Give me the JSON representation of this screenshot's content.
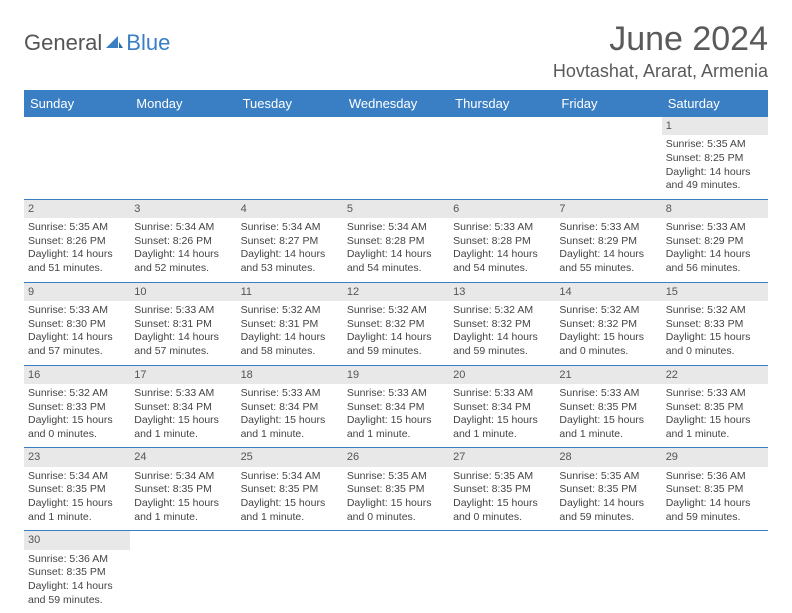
{
  "logo": {
    "general": "General",
    "blue": "Blue"
  },
  "title": "June 2024",
  "location": "Hovtashat, Ararat, Armenia",
  "colors": {
    "header_bg": "#3a7fc4",
    "header_text": "#ffffff",
    "day_num_bg": "#e8e8e8",
    "body_text": "#444444",
    "title_text": "#5a5a5a",
    "row_divider": "#3a7fc4",
    "page_bg": "#ffffff"
  },
  "typography": {
    "title_fontsize": 34,
    "location_fontsize": 18,
    "dayhead_fontsize": 13,
    "cell_fontsize": 10.5
  },
  "day_headers": [
    "Sunday",
    "Monday",
    "Tuesday",
    "Wednesday",
    "Thursday",
    "Friday",
    "Saturday"
  ],
  "weeks": [
    [
      null,
      null,
      null,
      null,
      null,
      null,
      {
        "n": "1",
        "sr": "Sunrise: 5:35 AM",
        "ss": "Sunset: 8:25 PM",
        "dl": "Daylight: 14 hours and 49 minutes."
      }
    ],
    [
      {
        "n": "2",
        "sr": "Sunrise: 5:35 AM",
        "ss": "Sunset: 8:26 PM",
        "dl": "Daylight: 14 hours and 51 minutes."
      },
      {
        "n": "3",
        "sr": "Sunrise: 5:34 AM",
        "ss": "Sunset: 8:26 PM",
        "dl": "Daylight: 14 hours and 52 minutes."
      },
      {
        "n": "4",
        "sr": "Sunrise: 5:34 AM",
        "ss": "Sunset: 8:27 PM",
        "dl": "Daylight: 14 hours and 53 minutes."
      },
      {
        "n": "5",
        "sr": "Sunrise: 5:34 AM",
        "ss": "Sunset: 8:28 PM",
        "dl": "Daylight: 14 hours and 54 minutes."
      },
      {
        "n": "6",
        "sr": "Sunrise: 5:33 AM",
        "ss": "Sunset: 8:28 PM",
        "dl": "Daylight: 14 hours and 54 minutes."
      },
      {
        "n": "7",
        "sr": "Sunrise: 5:33 AM",
        "ss": "Sunset: 8:29 PM",
        "dl": "Daylight: 14 hours and 55 minutes."
      },
      {
        "n": "8",
        "sr": "Sunrise: 5:33 AM",
        "ss": "Sunset: 8:29 PM",
        "dl": "Daylight: 14 hours and 56 minutes."
      }
    ],
    [
      {
        "n": "9",
        "sr": "Sunrise: 5:33 AM",
        "ss": "Sunset: 8:30 PM",
        "dl": "Daylight: 14 hours and 57 minutes."
      },
      {
        "n": "10",
        "sr": "Sunrise: 5:33 AM",
        "ss": "Sunset: 8:31 PM",
        "dl": "Daylight: 14 hours and 57 minutes."
      },
      {
        "n": "11",
        "sr": "Sunrise: 5:32 AM",
        "ss": "Sunset: 8:31 PM",
        "dl": "Daylight: 14 hours and 58 minutes."
      },
      {
        "n": "12",
        "sr": "Sunrise: 5:32 AM",
        "ss": "Sunset: 8:32 PM",
        "dl": "Daylight: 14 hours and 59 minutes."
      },
      {
        "n": "13",
        "sr": "Sunrise: 5:32 AM",
        "ss": "Sunset: 8:32 PM",
        "dl": "Daylight: 14 hours and 59 minutes."
      },
      {
        "n": "14",
        "sr": "Sunrise: 5:32 AM",
        "ss": "Sunset: 8:32 PM",
        "dl": "Daylight: 15 hours and 0 minutes."
      },
      {
        "n": "15",
        "sr": "Sunrise: 5:32 AM",
        "ss": "Sunset: 8:33 PM",
        "dl": "Daylight: 15 hours and 0 minutes."
      }
    ],
    [
      {
        "n": "16",
        "sr": "Sunrise: 5:32 AM",
        "ss": "Sunset: 8:33 PM",
        "dl": "Daylight: 15 hours and 0 minutes."
      },
      {
        "n": "17",
        "sr": "Sunrise: 5:33 AM",
        "ss": "Sunset: 8:34 PM",
        "dl": "Daylight: 15 hours and 1 minute."
      },
      {
        "n": "18",
        "sr": "Sunrise: 5:33 AM",
        "ss": "Sunset: 8:34 PM",
        "dl": "Daylight: 15 hours and 1 minute."
      },
      {
        "n": "19",
        "sr": "Sunrise: 5:33 AM",
        "ss": "Sunset: 8:34 PM",
        "dl": "Daylight: 15 hours and 1 minute."
      },
      {
        "n": "20",
        "sr": "Sunrise: 5:33 AM",
        "ss": "Sunset: 8:34 PM",
        "dl": "Daylight: 15 hours and 1 minute."
      },
      {
        "n": "21",
        "sr": "Sunrise: 5:33 AM",
        "ss": "Sunset: 8:35 PM",
        "dl": "Daylight: 15 hours and 1 minute."
      },
      {
        "n": "22",
        "sr": "Sunrise: 5:33 AM",
        "ss": "Sunset: 8:35 PM",
        "dl": "Daylight: 15 hours and 1 minute."
      }
    ],
    [
      {
        "n": "23",
        "sr": "Sunrise: 5:34 AM",
        "ss": "Sunset: 8:35 PM",
        "dl": "Daylight: 15 hours and 1 minute."
      },
      {
        "n": "24",
        "sr": "Sunrise: 5:34 AM",
        "ss": "Sunset: 8:35 PM",
        "dl": "Daylight: 15 hours and 1 minute."
      },
      {
        "n": "25",
        "sr": "Sunrise: 5:34 AM",
        "ss": "Sunset: 8:35 PM",
        "dl": "Daylight: 15 hours and 1 minute."
      },
      {
        "n": "26",
        "sr": "Sunrise: 5:35 AM",
        "ss": "Sunset: 8:35 PM",
        "dl": "Daylight: 15 hours and 0 minutes."
      },
      {
        "n": "27",
        "sr": "Sunrise: 5:35 AM",
        "ss": "Sunset: 8:35 PM",
        "dl": "Daylight: 15 hours and 0 minutes."
      },
      {
        "n": "28",
        "sr": "Sunrise: 5:35 AM",
        "ss": "Sunset: 8:35 PM",
        "dl": "Daylight: 14 hours and 59 minutes."
      },
      {
        "n": "29",
        "sr": "Sunrise: 5:36 AM",
        "ss": "Sunset: 8:35 PM",
        "dl": "Daylight: 14 hours and 59 minutes."
      }
    ],
    [
      {
        "n": "30",
        "sr": "Sunrise: 5:36 AM",
        "ss": "Sunset: 8:35 PM",
        "dl": "Daylight: 14 hours and 59 minutes."
      },
      null,
      null,
      null,
      null,
      null,
      null
    ]
  ]
}
